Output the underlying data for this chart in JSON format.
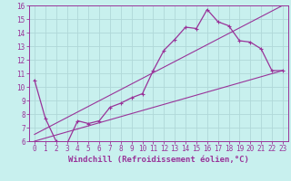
{
  "xlabel": "Windchill (Refroidissement éolien,°C)",
  "bg_color": "#c8f0ee",
  "grid_color": "#b0d8d8",
  "line_color": "#993399",
  "spine_color": "#993399",
  "xlim": [
    -0.5,
    23.5
  ],
  "ylim": [
    6,
    16
  ],
  "xticks": [
    0,
    1,
    2,
    3,
    4,
    5,
    6,
    7,
    8,
    9,
    10,
    11,
    12,
    13,
    14,
    15,
    16,
    17,
    18,
    19,
    20,
    21,
    22,
    23
  ],
  "yticks": [
    6,
    7,
    8,
    9,
    10,
    11,
    12,
    13,
    14,
    15,
    16
  ],
  "hours": [
    0,
    1,
    2,
    3,
    4,
    5,
    6,
    7,
    8,
    9,
    10,
    11,
    12,
    13,
    14,
    15,
    16,
    17,
    18,
    19,
    20,
    21,
    22,
    23
  ],
  "windchill": [
    10.5,
    7.7,
    6.0,
    5.8,
    7.5,
    7.3,
    7.5,
    8.5,
    8.8,
    9.2,
    9.5,
    11.2,
    12.7,
    13.5,
    14.4,
    14.3,
    15.7,
    14.8,
    14.5,
    13.4,
    13.3,
    12.8,
    11.2,
    11.2
  ],
  "ref_line1_x": [
    0,
    23
  ],
  "ref_line1_y": [
    6.5,
    16.0
  ],
  "ref_line2_x": [
    0,
    23
  ],
  "ref_line2_y": [
    6.0,
    11.2
  ],
  "tick_fontsize": 5.5,
  "xlabel_fontsize": 6.5
}
